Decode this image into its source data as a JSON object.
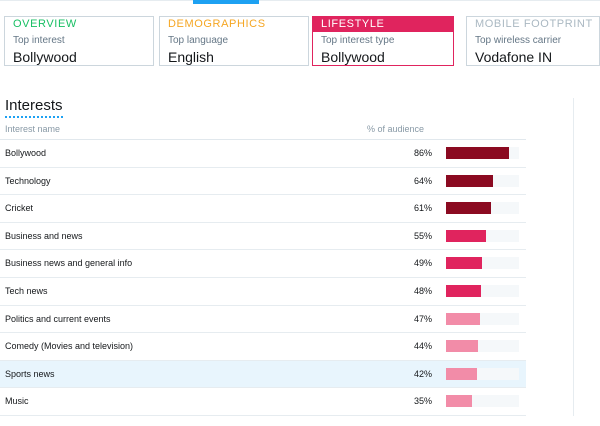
{
  "cards": [
    {
      "tag": "OVERVIEW",
      "sub": "Top interest",
      "value": "Bollywood",
      "color": "#17bf63",
      "active": false
    },
    {
      "tag": "DEMOGRAPHICS",
      "sub": "Top language",
      "value": "English",
      "color": "#f5a623",
      "active": false
    },
    {
      "tag": "LIFESTYLE",
      "sub": "Top interest type",
      "value": "Bollywood",
      "color": "#e0245e",
      "active": true
    },
    {
      "tag": "MOBILE FOOTPRINT",
      "sub": "Top wireless carrier",
      "value": "Vodafone IN",
      "color": "#aab8c2",
      "active": false
    }
  ],
  "section": {
    "title": "Interests"
  },
  "table": {
    "col_name": "Interest name",
    "col_pct": "% of audience",
    "rows": [
      {
        "name": "Bollywood",
        "pct": "86%",
        "value": 86,
        "color": "#8b0a21"
      },
      {
        "name": "Technology",
        "pct": "64%",
        "value": 64,
        "color": "#8b0a21"
      },
      {
        "name": "Cricket",
        "pct": "61%",
        "value": 61,
        "color": "#8b0a21"
      },
      {
        "name": "Business and news",
        "pct": "55%",
        "value": 55,
        "color": "#e0245e"
      },
      {
        "name": "Business news and general info",
        "pct": "49%",
        "value": 49,
        "color": "#e0245e"
      },
      {
        "name": "Tech news",
        "pct": "48%",
        "value": 48,
        "color": "#e0245e"
      },
      {
        "name": "Politics and current events",
        "pct": "47%",
        "value": 47,
        "color": "#f28ca8"
      },
      {
        "name": "Comedy (Movies and television)",
        "pct": "44%",
        "value": 44,
        "color": "#f28ca8"
      },
      {
        "name": "Sports news",
        "pct": "42%",
        "value": 42,
        "color": "#f28ca8",
        "highlight": true
      },
      {
        "name": "Music",
        "pct": "35%",
        "value": 35,
        "color": "#f28ca8"
      }
    ]
  }
}
